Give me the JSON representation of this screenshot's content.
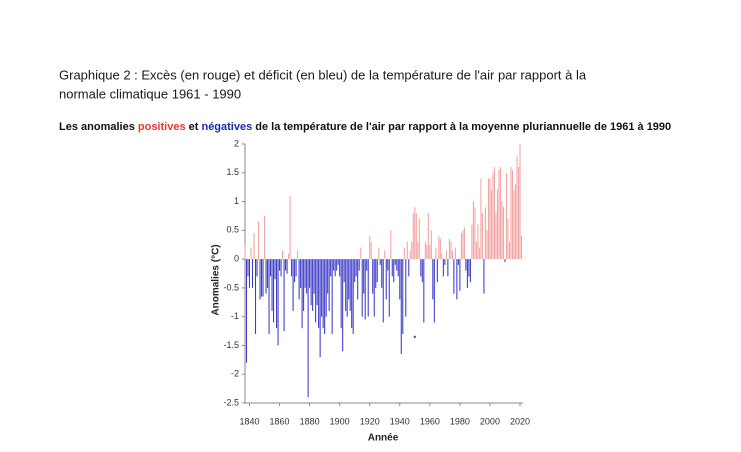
{
  "chart_data": {
    "type": "bar",
    "title": [
      "Graphique 2 : Excès (en rouge) et déficit (en bleu) de la température de l'air par rapport à la",
      "normale climatique 1961 - 1990"
    ],
    "subtitle": [
      "Les anomalies ",
      "positives",
      " et ",
      "négatives",
      " de la température de l'air par rapport à la moyenne pluriannuelle de 1961 à 1990"
    ],
    "y_label": "Anomalies (°C)",
    "x_label": "Année",
    "positive_color": "#f2a3a3",
    "negative_color": "#3a3ac8",
    "xlim": [
      1837,
      2022
    ],
    "ylim": [
      -2.5,
      2
    ],
    "xticks": [
      1840,
      1860,
      1880,
      1900,
      1920,
      1940,
      1960,
      1980,
      2000,
      2020
    ],
    "yticks": [
      2,
      1.5,
      1,
      0.5,
      0,
      -0.5,
      -1,
      -1.5,
      -2,
      -2.5
    ],
    "x": [
      1837,
      1838,
      1839,
      1840,
      1841,
      1842,
      1843,
      1844,
      1845,
      1846,
      1847,
      1848,
      1849,
      1850,
      1851,
      1852,
      1853,
      1854,
      1855,
      1856,
      1857,
      1858,
      1859,
      1860,
      1861,
      1862,
      1863,
      1864,
      1865,
      1866,
      1867,
      1868,
      1869,
      1870,
      1871,
      1872,
      1873,
      1874,
      1875,
      1876,
      1877,
      1878,
      1879,
      1880,
      1881,
      1882,
      1883,
      1884,
      1885,
      1886,
      1887,
      1888,
      1889,
      1890,
      1891,
      1892,
      1893,
      1894,
      1895,
      1896,
      1897,
      1898,
      1899,
      1900,
      1901,
      1902,
      1903,
      1904,
      1905,
      1906,
      1907,
      1908,
      1909,
      1910,
      1911,
      1912,
      1913,
      1914,
      1915,
      1916,
      1917,
      1918,
      1919,
      1920,
      1921,
      1922,
      1923,
      1924,
      1925,
      1926,
      1927,
      1928,
      1929,
      1930,
      1931,
      1932,
      1933,
      1934,
      1935,
      1936,
      1937,
      1938,
      1939,
      1940,
      1941,
      1942,
      1943,
      1944,
      1945,
      1946,
      1947,
      1948,
      1949,
      1950,
      1951,
      1952,
      1953,
      1954,
      1955,
      1956,
      1957,
      1958,
      1959,
      1960,
      1961,
      1962,
      1963,
      1964,
      1965,
      1966,
      1967,
      1968,
      1969,
      1970,
      1971,
      1972,
      1973,
      1974,
      1975,
      1976,
      1977,
      1978,
      1979,
      1980,
      1981,
      1982,
      1983,
      1984,
      1985,
      1986,
      1987,
      1988,
      1989,
      1990,
      1991,
      1992,
      1993,
      1994,
      1995,
      1996,
      1997,
      1998,
      1999,
      2000,
      2001,
      2002,
      2003,
      2004,
      2005,
      2006,
      2007,
      2008,
      2009,
      2010,
      2011,
      2012,
      2013,
      2014,
      2015,
      2016,
      2017,
      2018,
      2019,
      2020,
      2021
    ],
    "values": [
      0.25,
      -1.8,
      -0.3,
      -0.5,
      0.2,
      -0.5,
      0.45,
      -1.3,
      -0.3,
      0.65,
      -0.7,
      -0.65,
      -0.65,
      0.75,
      -0.6,
      -0.5,
      -1.3,
      -0.3,
      -0.9,
      -1.1,
      -0.35,
      -1.2,
      -1.5,
      -0.2,
      -0.3,
      0.15,
      -1.25,
      -0.2,
      -0.25,
      0.1,
      1.1,
      -0.3,
      -0.9,
      -0.4,
      -0.3,
      0.15,
      -0.7,
      -0.5,
      -1.2,
      -0.9,
      -0.5,
      -0.6,
      -2.4,
      -0.5,
      -0.8,
      -0.9,
      -0.6,
      -1.1,
      -0.8,
      -1.2,
      -1.7,
      -1.0,
      -1.2,
      -1.3,
      -1.0,
      -0.6,
      -0.9,
      -0.3,
      -1.3,
      -0.2,
      -0.3,
      -0.2,
      -0.1,
      -0.3,
      -1.2,
      -1.6,
      -0.4,
      -0.9,
      -1.0,
      -0.7,
      -0.9,
      -1.2,
      -1.3,
      -0.4,
      -0.3,
      -0.7,
      -0.2,
      0.2,
      -1.0,
      -0.6,
      -1.05,
      -0.2,
      -1.0,
      0.4,
      0.3,
      -0.6,
      -1.0,
      -0.5,
      -0.4,
      0.2,
      -0.1,
      -0.5,
      -1.1,
      0.15,
      -0.7,
      -0.2,
      -1.0,
      0.5,
      -0.3,
      -0.4,
      -0.1,
      -0.2,
      -0.3,
      -0.7,
      -1.65,
      -1.3,
      0.2,
      -1.0,
      0.3,
      -0.3,
      0.15,
      0.3,
      0.8,
      0.9,
      0.8,
      0.3,
      0.7,
      -0.3,
      -0.4,
      -1.1,
      0.3,
      0.25,
      0.8,
      0.25,
      0.5,
      -0.7,
      -1.1,
      0.2,
      -0.4,
      0.4,
      0.35,
      0.1,
      -0.3,
      -0.1,
      0.15,
      -0.3,
      0.35,
      0.3,
      0.15,
      -0.6,
      0.2,
      -0.7,
      -0.1,
      -0.55,
      0.45,
      0.5,
      0.55,
      -0.2,
      -0.5,
      -0.3,
      -0.4,
      0.6,
      1.0,
      0.9,
      0.3,
      0.6,
      0.2,
      1.4,
      0.8,
      -0.6,
      0.9,
      0.5,
      1.4,
      1.4,
      1.2,
      1.5,
      1.6,
      0.8,
      1.2,
      1.55,
      1.6,
      1.0,
      0.9,
      -0.05,
      1.5,
      0.7,
      0.3,
      1.6,
      1.55,
      1.2,
      1.3,
      1.8,
      1.6,
      2.0,
      0.4
    ],
    "point": {
      "x": 1950,
      "y": -1.35
    }
  }
}
